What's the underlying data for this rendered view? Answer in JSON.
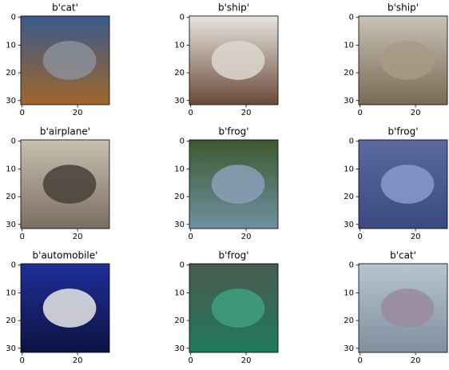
{
  "chart_data": [
    {
      "type": "image",
      "title": "b'cat'",
      "xlim": [
        -0.5,
        31.5
      ],
      "ylim": [
        31.5,
        -0.5
      ],
      "xticks": [
        0,
        20
      ],
      "yticks": [
        0,
        10,
        20,
        30
      ]
    },
    {
      "type": "image",
      "title": "b'ship'",
      "xlim": [
        -0.5,
        31.5
      ],
      "ylim": [
        31.5,
        -0.5
      ],
      "xticks": [
        0,
        20
      ],
      "yticks": [
        0,
        10,
        20,
        30
      ]
    },
    {
      "type": "image",
      "title": "b'ship'",
      "xlim": [
        -0.5,
        31.5
      ],
      "ylim": [
        31.5,
        -0.5
      ],
      "xticks": [
        0,
        20
      ],
      "yticks": [
        0,
        10,
        20,
        30
      ]
    },
    {
      "type": "image",
      "title": "b'airplane'",
      "xlim": [
        -0.5,
        31.5
      ],
      "ylim": [
        31.5,
        -0.5
      ],
      "xticks": [
        0,
        20
      ],
      "yticks": [
        0,
        10,
        20,
        30
      ]
    },
    {
      "type": "image",
      "title": "b'frog'",
      "xlim": [
        -0.5,
        31.5
      ],
      "ylim": [
        31.5,
        -0.5
      ],
      "xticks": [
        0,
        20
      ],
      "yticks": [
        0,
        10,
        20,
        30
      ]
    },
    {
      "type": "image",
      "title": "b'frog'",
      "xlim": [
        -0.5,
        31.5
      ],
      "ylim": [
        31.5,
        -0.5
      ],
      "xticks": [
        0,
        20
      ],
      "yticks": [
        0,
        10,
        20,
        30
      ]
    },
    {
      "type": "image",
      "title": "b'automobile'",
      "xlim": [
        -0.5,
        31.5
      ],
      "ylim": [
        31.5,
        -0.5
      ],
      "xticks": [
        0,
        20
      ],
      "yticks": [
        0,
        10,
        20,
        30
      ]
    },
    {
      "type": "image",
      "title": "b'frog'",
      "xlim": [
        -0.5,
        31.5
      ],
      "ylim": [
        31.5,
        -0.5
      ],
      "xticks": [
        0,
        20
      ],
      "yticks": [
        0,
        10,
        20,
        30
      ]
    },
    {
      "type": "image",
      "title": "b'cat'",
      "xlim": [
        -0.5,
        31.5
      ],
      "ylim": [
        31.5,
        -0.5
      ],
      "xticks": [
        0,
        20
      ],
      "yticks": [
        0,
        10,
        20,
        30
      ]
    }
  ]
}
